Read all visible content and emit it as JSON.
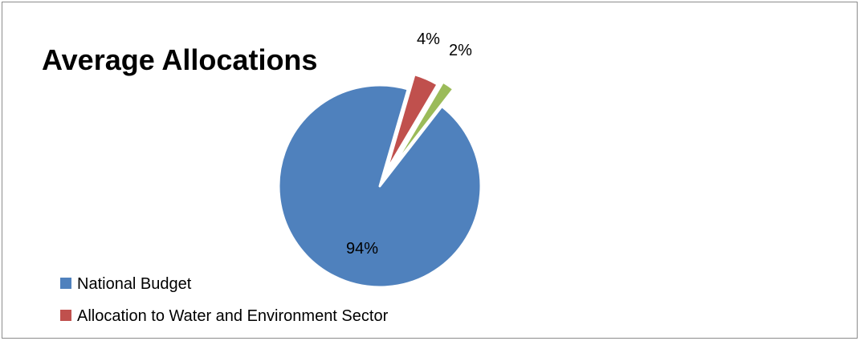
{
  "chart_data": {
    "type": "pie",
    "title": "Average Allocations",
    "slices": [
      {
        "label": "National Budget",
        "value": 94,
        "display": "94%",
        "color": "#4f81bd"
      },
      {
        "label": "Allocation to Water and Environment Sector",
        "value": 4,
        "display": "4%",
        "color": "#c0504d"
      },
      {
        "label": "",
        "value": 2,
        "display": "2%",
        "color": "#9bbb59"
      }
    ],
    "legend": {
      "placement": "bottom-left",
      "entries": [
        "National Budget",
        "Allocation to Water and Environment Sector"
      ]
    }
  }
}
